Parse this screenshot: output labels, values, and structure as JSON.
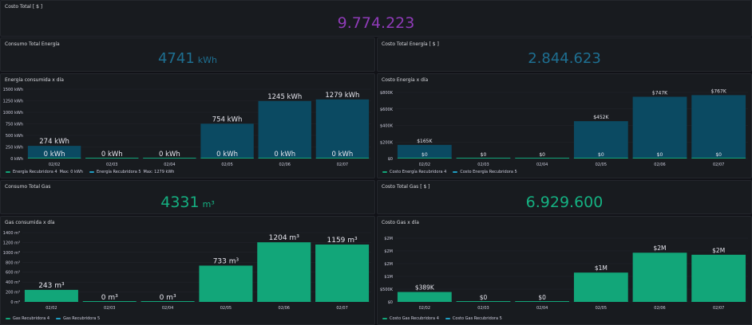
{
  "colors": {
    "purple": "#8f3bb8",
    "energy": "#0a4c66",
    "energy_text": "#1e6f91",
    "gas": "#12a679",
    "gas_text": "#15b081"
  },
  "costo_total": {
    "title": "Costo Total [ $ ]",
    "value": "9.774.223"
  },
  "consumo_energia": {
    "title": "Consumo Total Energía",
    "value": "4741",
    "unit": "kWh"
  },
  "costo_energia": {
    "title": "Costo Total Energía [ $ ]",
    "value": "2.844.623"
  },
  "consumo_gas": {
    "title": "Consumo Total Gas",
    "value": "4331",
    "unit": "m³"
  },
  "costo_gas": {
    "title": "Costo Total Gas [ $ ]",
    "value": "6.929.600"
  },
  "energia_dia": {
    "title": "Energía consumida x día",
    "legend": [
      {
        "label": "Energía Recubridora 4",
        "stats": "Max: 0 kWh",
        "color": "#12a679"
      },
      {
        "label": "Energía Recubridora 5",
        "stats": "Max: 1279 kWh",
        "color": "#1f9fc4"
      }
    ],
    "chart_data": {
      "type": "bar",
      "categories": [
        "02/02",
        "02/03",
        "02/04",
        "02/05",
        "02/06",
        "02/07"
      ],
      "yticks": [
        "0 kWh",
        "250 kWh",
        "500 kWh",
        "750 kWh",
        "1000 kWh",
        "1250 kWh",
        "1500 kWh"
      ],
      "ylim": [
        0,
        1500
      ],
      "series": [
        {
          "name": "Energía Recubridora 4",
          "values": [
            0,
            0,
            0,
            0,
            0,
            0
          ],
          "labels": [
            "0 kWh",
            "0 kWh",
            "0 kWh",
            "0 kWh",
            "0 kWh",
            "0 kWh"
          ]
        },
        {
          "name": "Energía Recubridora 5",
          "values": [
            274,
            0,
            0,
            754,
            1245,
            1279
          ],
          "labels": [
            "274 kWh",
            "",
            "",
            "754 kWh",
            "1245 kWh",
            "1279 kWh"
          ]
        }
      ]
    }
  },
  "costo_energia_dia": {
    "title": "Costo Energía x día",
    "legend": [
      {
        "label": "Costo Energía Recubridora 4",
        "color": "#12a679"
      },
      {
        "label": "Costo Energía Recubridora 5",
        "color": "#1f9fc4"
      }
    ],
    "chart_data": {
      "type": "bar",
      "categories": [
        "02/02",
        "02/03",
        "02/04",
        "02/05",
        "02/06",
        "02/07"
      ],
      "yticks": [
        "$0",
        "$200K",
        "$400K",
        "$600K",
        "$800K"
      ],
      "ylim": [
        0,
        800000
      ],
      "series": [
        {
          "name": "Costo Energía Recubridora 4",
          "values": [
            0,
            0,
            0,
            0,
            0,
            0
          ],
          "labels": [
            "$0",
            "$0",
            "$0",
            "$0",
            "$0",
            "$0"
          ]
        },
        {
          "name": "Costo Energía Recubridora 5",
          "values": [
            165000,
            0,
            0,
            452000,
            747000,
            767000
          ],
          "labels": [
            "$165K",
            "",
            "",
            "$452K",
            "$747K",
            "$767K"
          ]
        }
      ]
    }
  },
  "gas_dia": {
    "title": "Gas consumida x día",
    "legend": [
      {
        "label": "Gas Recubridora 4",
        "color": "#12a679"
      },
      {
        "label": "Gas Recubridora 5",
        "color": "#1f9fc4"
      }
    ],
    "chart_data": {
      "type": "bar",
      "categories": [
        "02/02",
        "02/03",
        "02/04",
        "02/05",
        "02/06",
        "02/07"
      ],
      "yticks": [
        "0 m³",
        "200 m³",
        "400 m³",
        "600 m³",
        "800 m³",
        "1000 m³",
        "1200 m³",
        "1400 m³"
      ],
      "ylim": [
        0,
        1400
      ],
      "series": [
        {
          "name": "Gas Recubridora 4",
          "values": [
            243,
            0,
            0,
            733,
            1204,
            1159
          ],
          "labels": [
            "243 m³",
            "0 m³",
            "0 m³",
            "733 m³",
            "1204 m³",
            "1159 m³"
          ]
        }
      ]
    }
  },
  "costo_gas_dia": {
    "title": "Costo Gas x día",
    "legend": [
      {
        "label": "Costo Gas Recubridora 4",
        "color": "#12a679"
      },
      {
        "label": "Costo Gas Recubridora 5",
        "color": "#1f9fc4"
      }
    ],
    "chart_data": {
      "type": "bar",
      "categories": [
        "02/02",
        "02/03",
        "02/04",
        "02/05",
        "02/06",
        "02/07"
      ],
      "yticks": [
        "$0",
        "$500K",
        "$1M",
        "$2M",
        "$2M",
        "$2M"
      ],
      "ylim": [
        0,
        2500000
      ],
      "series": [
        {
          "name": "Costo Gas Recubridora 4",
          "values": [
            389000,
            0,
            0,
            1150000,
            1930000,
            1850000
          ],
          "labels": [
            "$389K",
            "$0",
            "$0",
            "$1M",
            "$2M",
            "$2M"
          ]
        }
      ]
    }
  }
}
